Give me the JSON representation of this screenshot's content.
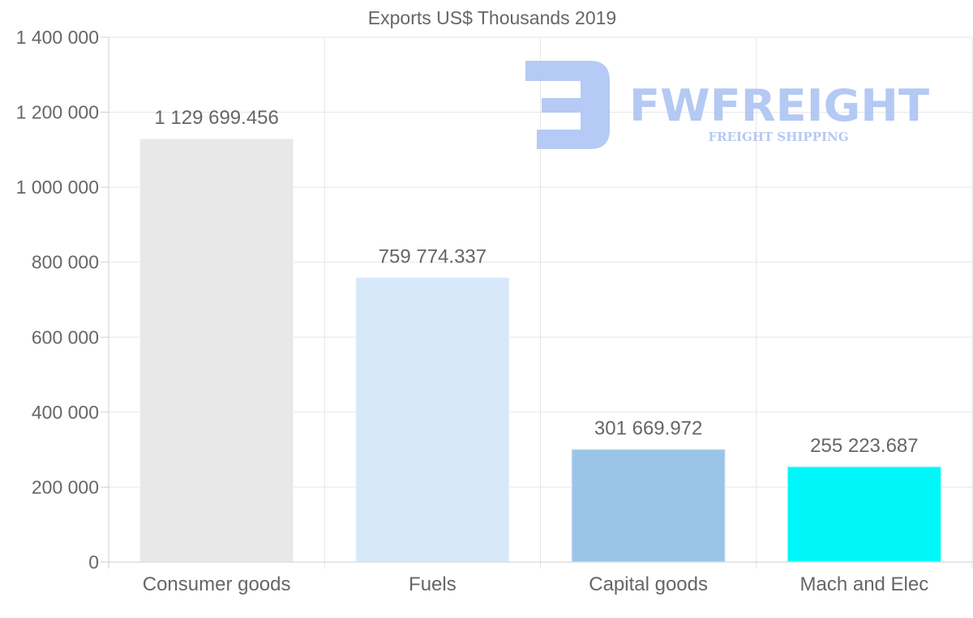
{
  "chart_data": {
    "type": "bar",
    "title": "Exports US$ Thousands 2019",
    "categories": [
      "Consumer goods",
      "Fuels",
      "Capital goods",
      "Mach and Elec"
    ],
    "values": [
      1129699.456,
      759774.337,
      301669.972,
      255223.687
    ],
    "value_labels": [
      "1 129 699.456",
      "759 774.337",
      "301 669.972",
      "255 223.687"
    ],
    "colors": [
      "#e8e8e8",
      "#d6e8fa",
      "#9ac5e8",
      "#00f7f9"
    ],
    "ylim": [
      0,
      1400000
    ],
    "yticks": [
      0,
      200000,
      400000,
      600000,
      800000,
      1000000,
      1200000,
      1400000
    ],
    "ytick_labels": [
      "0",
      "200 000",
      "400 000",
      "600 000",
      "800 000",
      "1 000 000",
      "1 200 000",
      "1 400 000"
    ],
    "xlabel": "",
    "ylabel": "",
    "grid": true
  },
  "watermark": {
    "brand": "FWFREIGHT",
    "tagline": "FREIGHT SHIPPING"
  }
}
